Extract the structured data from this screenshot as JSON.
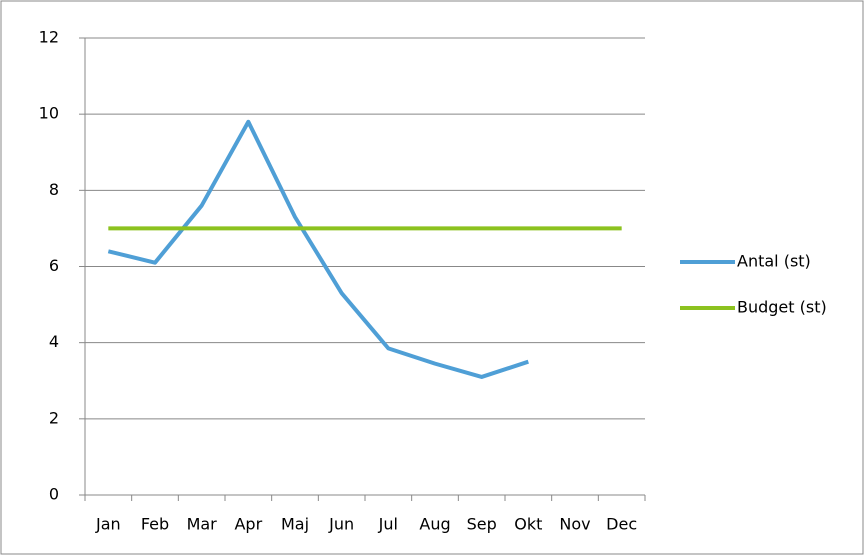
{
  "chart_data": {
    "type": "line",
    "categories": [
      "Jan",
      "Feb",
      "Mar",
      "Apr",
      "Maj",
      "Jun",
      "Jul",
      "Aug",
      "Sep",
      "Okt",
      "Nov",
      "Dec"
    ],
    "series": [
      {
        "name": "Antal (st)",
        "color": "#4f9fd6",
        "values": [
          6.4,
          6.1,
          7.6,
          9.8,
          7.3,
          5.3,
          3.85,
          3.45,
          3.1,
          3.5,
          null,
          null
        ]
      },
      {
        "name": "Budget (st)",
        "color": "#8cc21f",
        "values": [
          7,
          7,
          7,
          7,
          7,
          7,
          7,
          7,
          7,
          7,
          7,
          7
        ]
      }
    ],
    "ylim": [
      0,
      12
    ],
    "yticks": [
      0,
      2,
      4,
      6,
      8,
      10,
      12
    ],
    "grid": true,
    "legend": "right"
  }
}
